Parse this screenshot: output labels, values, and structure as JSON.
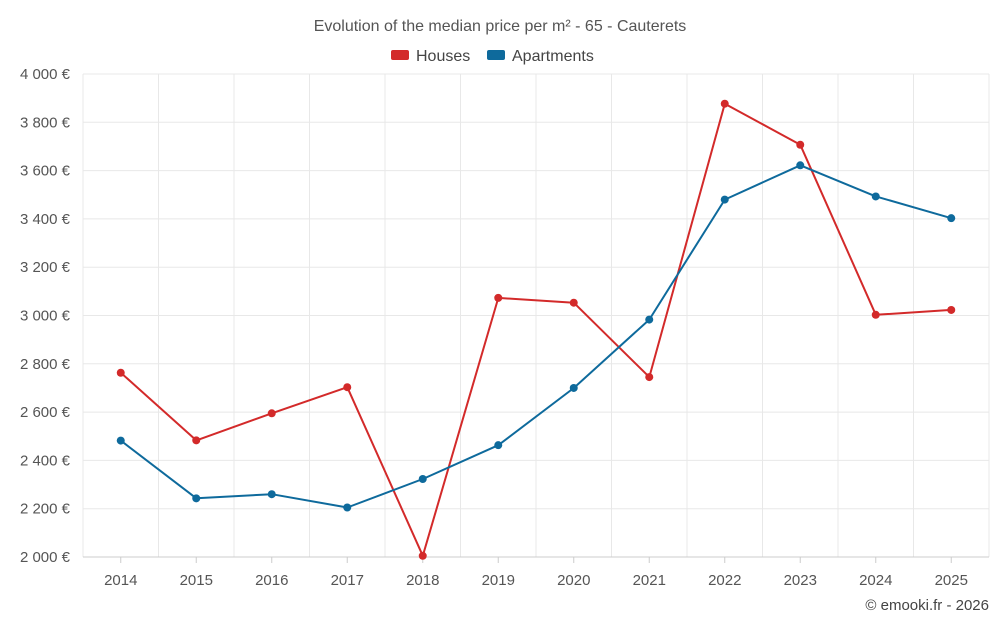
{
  "chart_data": {
    "type": "line",
    "title": "Evolution of the median price per m² - 65 - Cauterets",
    "categories": [
      "2014",
      "2015",
      "2016",
      "2017",
      "2018",
      "2019",
      "2020",
      "2021",
      "2022",
      "2023",
      "2024",
      "2025"
    ],
    "series": [
      {
        "name": "Houses",
        "color": "#d32a2a",
        "values": [
          2763,
          2483,
          2595,
          2703,
          2005,
          3073,
          3053,
          2745,
          3877,
          3707,
          3003,
          3023
        ]
      },
      {
        "name": "Apartments",
        "color": "#0e6a9c",
        "values": [
          2482,
          2243,
          2260,
          2205,
          2323,
          2463,
          2700,
          2983,
          3480,
          3622,
          3493,
          3403
        ]
      }
    ],
    "ylim": [
      2000,
      4000
    ],
    "yticks": [
      2000,
      2200,
      2400,
      2600,
      2800,
      3000,
      3200,
      3400,
      3600,
      3800,
      4000
    ],
    "ytick_labels": [
      "2 000 €",
      "2 200 €",
      "2 400 €",
      "2 600 €",
      "2 800 €",
      "3 000 €",
      "3 200 €",
      "3 400 €",
      "3 600 €",
      "3 800 €",
      "4 000 €"
    ],
    "xlabel": "",
    "ylabel": "",
    "grid": true,
    "legend_position": "top-center"
  },
  "credit": "© emooki.fr - 2026"
}
